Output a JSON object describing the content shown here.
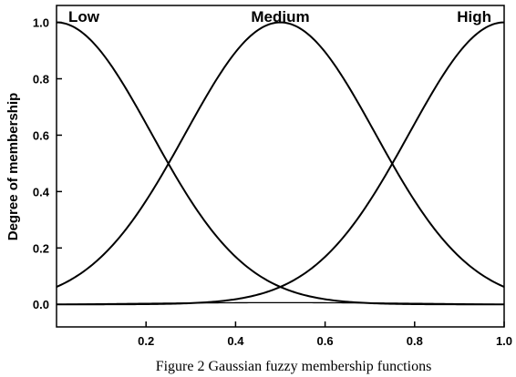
{
  "chart_data": {
    "type": "line",
    "title": "",
    "xlabel": "",
    "ylabel": "Degree of membership",
    "xlim": [
      0.0,
      1.0
    ],
    "ylim": [
      -0.08,
      1.06
    ],
    "x_ticks": [
      0.2,
      0.4,
      0.6,
      0.8,
      1.0
    ],
    "x_tick_labels": [
      "0.2",
      "0.4",
      "0.6",
      "0.8",
      "1.0"
    ],
    "y_ticks": [
      0.0,
      0.2,
      0.4,
      0.6,
      0.8,
      1.0
    ],
    "y_tick_labels": [
      "0.0",
      "0.2",
      "0.4",
      "0.6",
      "0.8",
      "1.0"
    ],
    "grid": false,
    "legend": "none",
    "series": [
      {
        "name": "Low",
        "shape": "gaussian",
        "center": 0.0,
        "sigma": 0.212
      },
      {
        "name": "Medium",
        "shape": "gaussian",
        "center": 0.5,
        "sigma": 0.212
      },
      {
        "name": "High",
        "shape": "gaussian",
        "center": 1.0,
        "sigma": 0.212
      }
    ]
  },
  "caption": "Figure 2 Gaussian fuzzy membership functions"
}
